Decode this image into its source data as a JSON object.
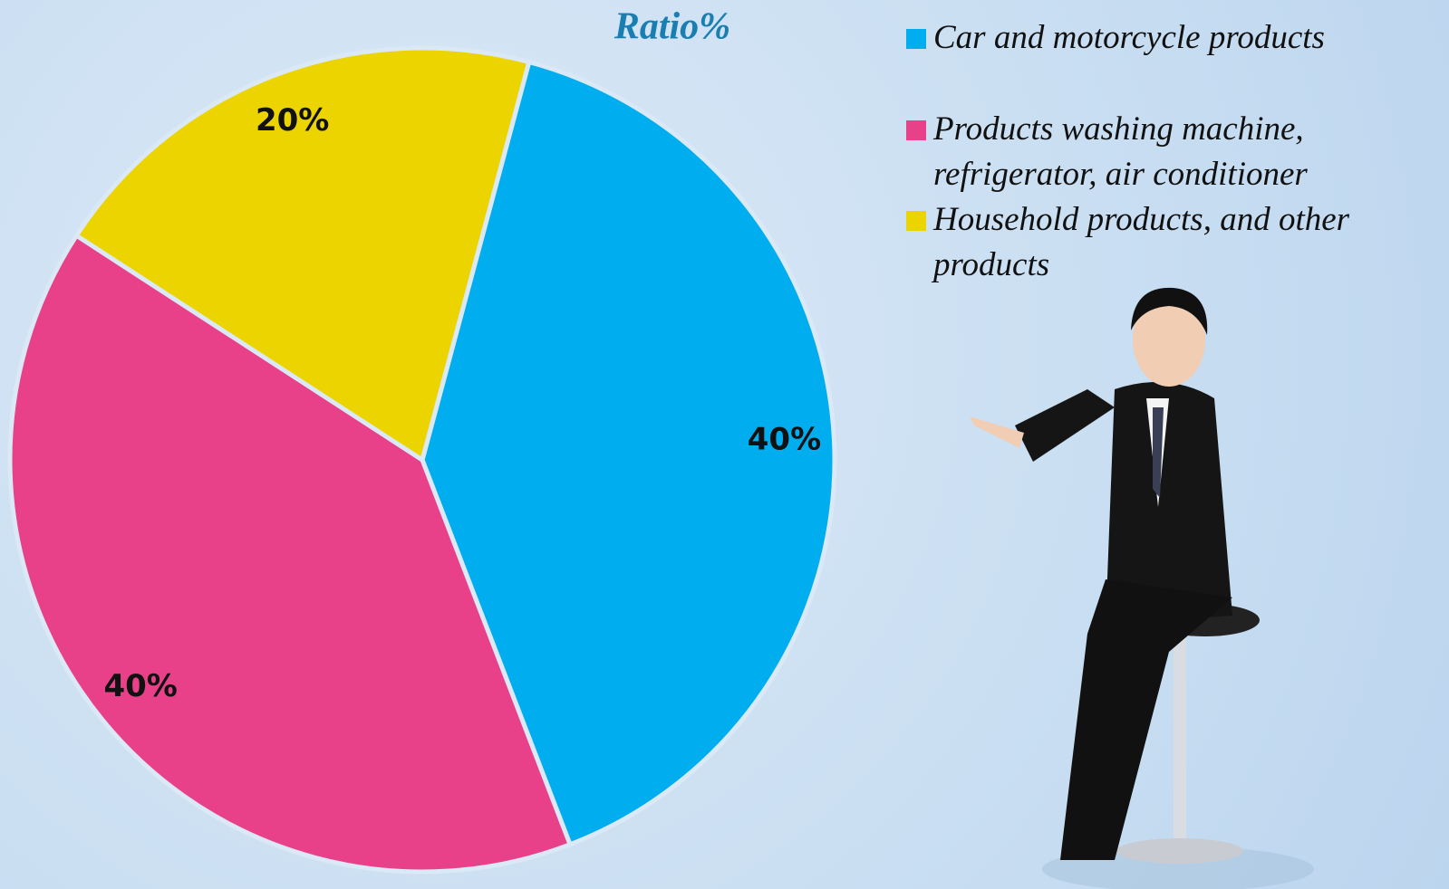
{
  "chart_data": {
    "type": "pie",
    "title": "Ratio%",
    "categories": [
      "Car and motorcycle products",
      "Products washing machine, refrigerator, air conditioner",
      "Household products, and other products"
    ],
    "values": [
      40,
      40,
      20
    ],
    "value_labels": [
      "40%",
      "40%",
      "20%"
    ],
    "colors": [
      "#00aeef",
      "#e8418a",
      "#ecd400"
    ]
  }
}
